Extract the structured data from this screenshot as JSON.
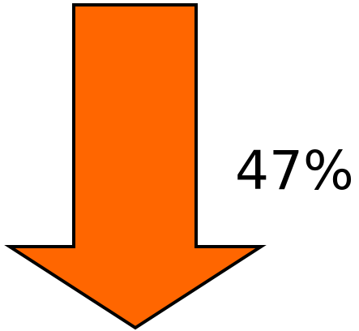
{
  "graphic": {
    "icon": "down-arrow-icon",
    "fill_color": "#FF6600",
    "stroke_color": "#000000"
  },
  "value": {
    "label": "47%"
  }
}
